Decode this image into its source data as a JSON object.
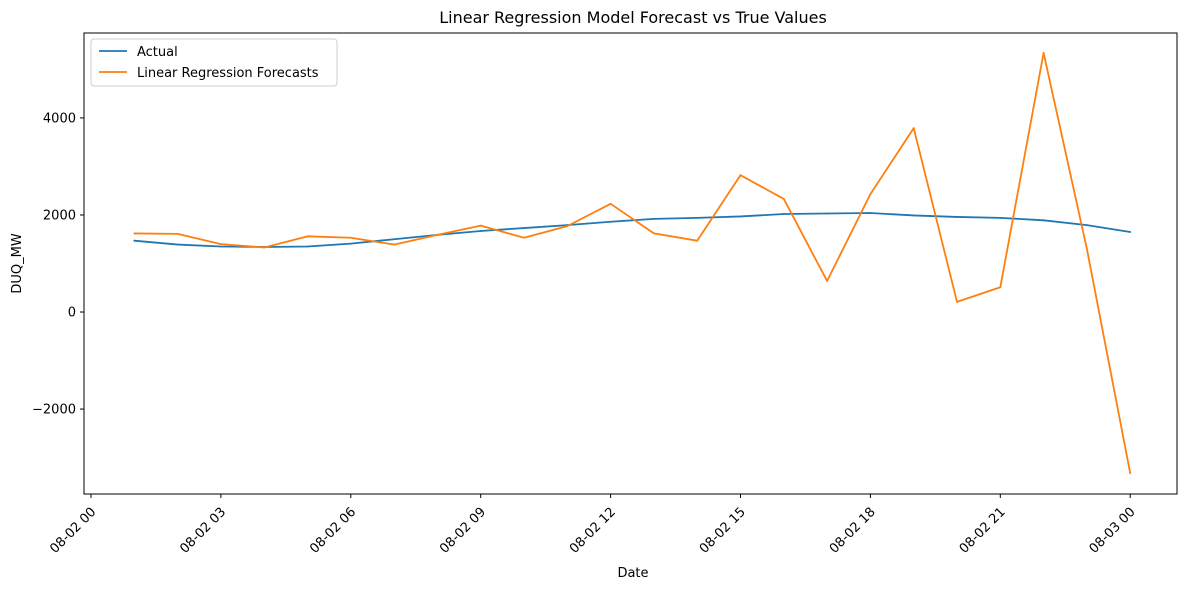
{
  "chart_data": {
    "type": "line",
    "title": "Linear Regression Model Forecast vs True Values",
    "xlabel": "Date",
    "ylabel": "DUQ_MW",
    "x": [
      "08-02 01",
      "08-02 02",
      "08-02 03",
      "08-02 04",
      "08-02 05",
      "08-02 06",
      "08-02 07",
      "08-02 08",
      "08-02 09",
      "08-02 10",
      "08-02 11",
      "08-02 12",
      "08-02 13",
      "08-02 14",
      "08-02 15",
      "08-02 16",
      "08-02 17",
      "08-02 18",
      "08-02 19",
      "08-02 20",
      "08-02 21",
      "08-02 22",
      "08-02 23",
      "08-03 00"
    ],
    "xticks": [
      "08-02 00",
      "08-02 03",
      "08-02 06",
      "08-02 09",
      "08-02 12",
      "08-02 15",
      "08-02 18",
      "08-02 21",
      "08-03 00"
    ],
    "xlim": [
      "08-02 00 (-0.03h)",
      "08-03 00 (+0.9h)"
    ],
    "yticks": [
      -2000,
      0,
      2000,
      4000
    ],
    "ylim": [
      -3750,
      5750
    ],
    "grid": false,
    "legend": "top-left",
    "series": [
      {
        "name": "Actual",
        "color": "#1f77b4",
        "values": [
          1470,
          1390,
          1350,
          1340,
          1350,
          1410,
          1500,
          1590,
          1670,
          1730,
          1790,
          1860,
          1920,
          1940,
          1970,
          2020,
          2030,
          2040,
          1990,
          1960,
          1940,
          1890,
          1790,
          1650
        ]
      },
      {
        "name": "Linear Regression Forecasts",
        "color": "#ff7f0e",
        "values": [
          1620,
          1610,
          1400,
          1330,
          1560,
          1530,
          1390,
          1590,
          1780,
          1530,
          1770,
          2230,
          1620,
          1470,
          2820,
          2330,
          640,
          2430,
          3790,
          210,
          510,
          5340,
          1300,
          -3320
        ]
      }
    ]
  }
}
